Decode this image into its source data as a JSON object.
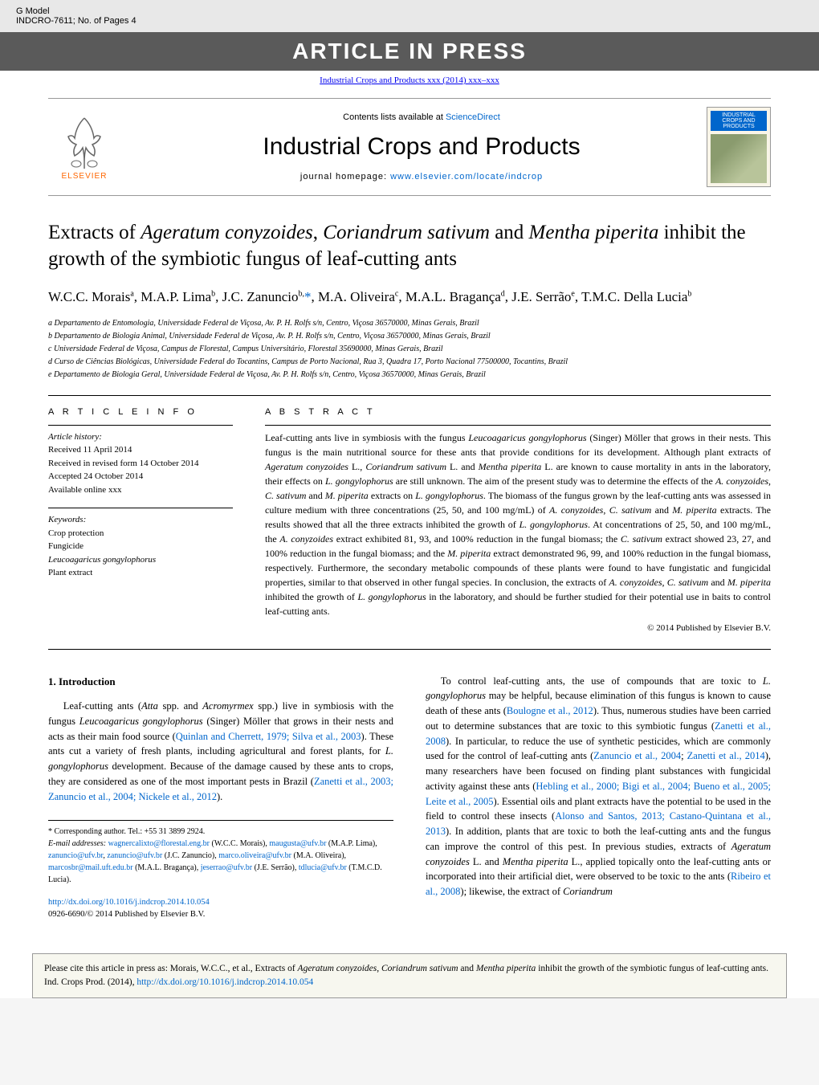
{
  "topbar": {
    "left1": "G Model",
    "left2": "INDCRO-7611;   No. of Pages 4",
    "banner": "ARTICLE IN PRESS",
    "journal_ref": "Industrial Crops and Products xxx (2014) xxx–xxx"
  },
  "header": {
    "elsevier": "ELSEVIER",
    "contents_prefix": "Contents lists available at ",
    "contents_link": "ScienceDirect",
    "journal_title": "Industrial Crops and Products",
    "homepage_prefix": "journal homepage: ",
    "homepage_url": "www.elsevier.com/locate/indcrop",
    "cover_label": "INDUSTRIAL CROPS AND PRODUCTS"
  },
  "article": {
    "title_1": "Extracts of ",
    "title_i1": "Ageratum conyzoides",
    "title_2": ", ",
    "title_i2": "Coriandrum sativum",
    "title_3": " and ",
    "title_i3": "Mentha piperita",
    "title_4": " inhibit the growth of the symbiotic fungus of leaf-cutting ants",
    "authors_line": "W.C.C. Morais<sup>a</sup>, M.A.P. Lima<sup>b</sup>, J.C. Zanuncio<sup>b,</sup><span class=\"corr\">*</span>, M.A. Oliveira<sup>c</sup>, M.A.L. Bragança<sup>d</sup>, J.E. Serrão<sup>e</sup>, T.M.C. Della Lucia<sup>b</sup>",
    "affiliations": [
      "a Departamento de Entomologia, Universidade Federal de Viçosa, Av. P. H. Rolfs s/n, Centro, Viçosa 36570000, Minas Gerais, Brazil",
      "b Departamento de Biologia Animal, Universidade Federal de Viçosa, Av. P. H. Rolfs s/n, Centro, Viçosa 36570000, Minas Gerais, Brazil",
      "c Universidade Federal de Viçosa, Campus de Florestal, Campus Universitário, Florestal 35690000, Minas Gerais, Brazil",
      "d Curso de Ciências Biológicas, Universidade Federal do Tocantins, Campus de Porto Nacional, Rua 3, Quadra 17, Porto Nacional 77500000, Tocantins, Brazil",
      "e Departamento de Biologia Geral, Universidade Federal de Viçosa, Av. P. H. Rolfs s/n, Centro, Viçosa 36570000, Minas Gerais, Brazil"
    ]
  },
  "info": {
    "heading": "A R T I C L E   I N F O",
    "history_label": "Article history:",
    "history": [
      "Received 11 April 2014",
      "Received in revised form 14 October 2014",
      "Accepted 24 October 2014",
      "Available online xxx"
    ],
    "keywords_label": "Keywords:",
    "keywords": [
      "Crop protection",
      "Fungicide",
      "Leucoagaricus gongylophorus",
      "Plant extract"
    ]
  },
  "abstract": {
    "heading": "A B S T R A C T",
    "text": "Leaf-cutting ants live in symbiosis with the fungus <span class=\"italic\">Leucoagaricus gongylophorus</span> (Singer) Möller that grows in their nests. This fungus is the main nutritional source for these ants that provide conditions for its development. Although plant extracts of <span class=\"italic\">Ageratum conyzoides</span> L., <span class=\"italic\">Coriandrum sativum</span> L. and <span class=\"italic\">Mentha piperita</span> L. are known to cause mortality in ants in the laboratory, their effects on <span class=\"italic\">L. gongylophorus</span> are still unknown. The aim of the present study was to determine the effects of the <span class=\"italic\">A. conyzoides</span>, <span class=\"italic\">C. sativum</span> and <span class=\"italic\">M. piperita</span> extracts on <span class=\"italic\">L. gongylophorus</span>. The biomass of the fungus grown by the leaf-cutting ants was assessed in culture medium with three concentrations (25, 50, and 100 mg/mL) of <span class=\"italic\">A. conyzoides</span>, <span class=\"italic\">C. sativum</span> and <span class=\"italic\">M. piperita</span> extracts. The results showed that all the three extracts inhibited the growth of <span class=\"italic\">L. gongylophorus</span>. At concentrations of 25, 50, and 100 mg/mL, the <span class=\"italic\">A. conyzoides</span> extract exhibited 81, 93, and 100% reduction in the fungal biomass; the <span class=\"italic\">C. sativum</span> extract showed 23, 27, and 100% reduction in the fungal biomass; and the <span class=\"italic\">M. piperita</span> extract demonstrated 96, 99, and 100% reduction in the fungal biomass, respectively. Furthermore, the secondary metabolic compounds of these plants were found to have fungistatic and fungicidal properties, similar to that observed in other fungal species. In conclusion, the extracts of <span class=\"italic\">A. conyzoides</span>, <span class=\"italic\">C. sativum</span> and <span class=\"italic\">M. piperita</span> inhibited the growth of <span class=\"italic\">L. gongylophorus</span> in the laboratory, and should be further studied for their potential use in baits to control leaf-cutting ants.",
    "copyright": "© 2014 Published by Elsevier B.V."
  },
  "intro": {
    "heading": "1. Introduction",
    "col1_p1": "Leaf-cutting ants (<span class=\"italic\">Atta</span> spp. and <span class=\"italic\">Acromyrmex</span> spp.) live in symbiosis with the fungus <span class=\"italic\">Leucoagaricus gongylophorus</span> (Singer) Möller that grows in their nests and acts as their main food source (<a href=\"#\">Quinlan and Cherrett, 1979; Silva et al., 2003</a>). These ants cut a variety of fresh plants, including agricultural and forest plants, for <span class=\"italic\">L. gongylophorus</span> development. Because of the damage caused by these ants to crops, they are considered as one of the most important pests in Brazil (<a href=\"#\">Zanetti et al., 2003; Zanuncio et al., 2004; Nickele et al., 2012</a>).",
    "col2_p1": "To control leaf-cutting ants, the use of compounds that are toxic to <span class=\"italic\">L. gongylophorus</span> may be helpful, because elimination of this fungus is known to cause death of these ants (<a href=\"#\">Boulogne et al., 2012</a>). Thus, numerous studies have been carried out to determine substances that are toxic to this symbiotic fungus (<a href=\"#\">Zanetti et al., 2008</a>). In particular, to reduce the use of synthetic pesticides, which are commonly used for the control of leaf-cutting ants (<a href=\"#\">Zanuncio et al., 2004</a>; <a href=\"#\">Zanetti et al., 2014</a>), many researchers have been focused on finding plant substances with fungicidal activity against these ants (<a href=\"#\">Hebling et al., 2000; Bigi et al., 2004; Bueno et al., 2005; Leite et al., 2005</a>). Essential oils and plant extracts have the potential to be used in the field to control these insects (<a href=\"#\">Alonso and Santos, 2013; Castano-Quintana et al., 2013</a>). In addition, plants that are toxic to both the leaf-cutting ants and the fungus can improve the control of this pest. In previous studies, extracts of <span class=\"italic\">Ageratum conyzoides</span> L. and <span class=\"italic\">Mentha piperita</span> L., applied topically onto the leaf-cutting ants or incorporated into their artificial diet, were observed to be toxic to the ants (<a href=\"#\">Ribeiro et al., 2008</a>); likewise, the extract of <span class=\"italic\">Coriandrum</span>"
  },
  "footnotes": {
    "corr": "* Corresponding author. Tel.: +55 31 3899 2924.",
    "emails_label": "E-mail addresses:",
    "emails": " <a href=\"#\">wagnercalixto@florestal.eng.br</a> (W.C.C. Morais), <a href=\"#\">maugusta@ufv.br</a> (M.A.P. Lima), <a href=\"#\">zanuncio@ufv.br</a>, <a href=\"#\">zanuncio@ufv.br</a> (J.C. Zanuncio), <a href=\"#\">marco.oliveira@ufv.br</a> (M.A. Oliveira), <a href=\"#\">marcosbr@mail.uft.edu.br</a> (M.A.L. Bragança), <a href=\"#\">jeserrao@ufv.br</a> (J.E. Serrão), <a href=\"#\">tdlucia@ufv.br</a> (T.M.C.D. Lucia)."
  },
  "doi": {
    "url": "http://dx.doi.org/10.1016/j.indcrop.2014.10.054",
    "issn": "0926-6690/© 2014 Published by Elsevier B.V."
  },
  "citebox": {
    "text": "Please cite this article in press as: Morais, W.C.C., et al., Extracts of <span class=\"italic\">Ageratum conyzoides</span>, <span class=\"italic\">Coriandrum sativum</span> and <span class=\"italic\">Mentha piperita</span> inhibit the growth of the symbiotic fungus of leaf-cutting ants. Ind. Crops Prod. (2014), <a href=\"#\">http://dx.doi.org/10.1016/j.indcrop.2014.10.054</a>"
  },
  "colors": {
    "link": "#0066cc",
    "banner_bg": "#5a5a5a",
    "elsevier_orange": "#ff6600",
    "citebox_bg": "#f7f7ef"
  }
}
